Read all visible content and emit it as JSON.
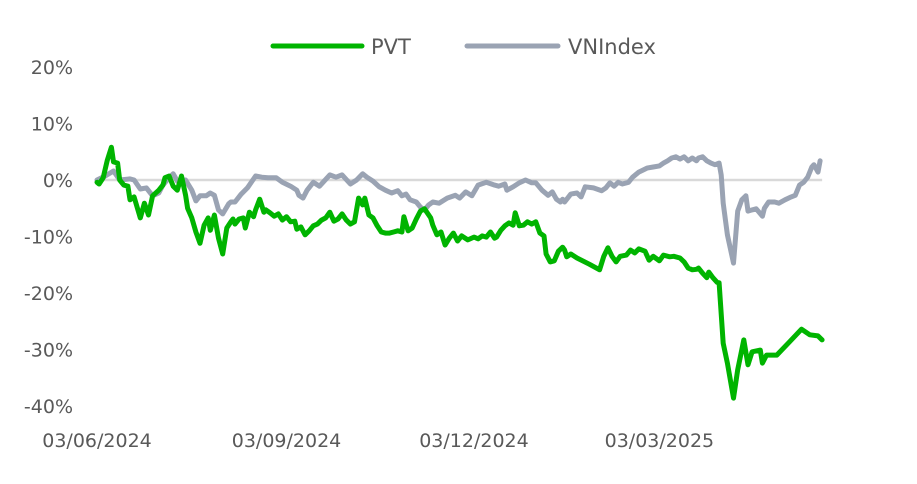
{
  "chart_data": {
    "type": "line",
    "title": "",
    "xlabel": "",
    "ylabel": "",
    "x_unit": "days since 03/06/2024",
    "ylim": [
      -40,
      20
    ],
    "xlim": [
      0,
      352
    ],
    "yticks": [
      {
        "value": 20,
        "label": "20%"
      },
      {
        "value": 10,
        "label": "10%"
      },
      {
        "value": 0,
        "label": "0%"
      },
      {
        "value": -10,
        "label": "-10%"
      },
      {
        "value": -20,
        "label": "-20%"
      },
      {
        "value": -30,
        "label": "-30%"
      },
      {
        "value": -40,
        "label": "-40%"
      }
    ],
    "xticks": [
      {
        "value": 0,
        "label": "03/06/2024"
      },
      {
        "value": 92,
        "label": "03/09/2024"
      },
      {
        "value": 183,
        "label": "03/12/2024"
      },
      {
        "value": 273,
        "label": "03/03/2025"
      }
    ],
    "zero_line": true,
    "legend_position": "top-center",
    "series": [
      {
        "name": "PVT",
        "color": "#00b400",
        "points": [
          [
            0,
            -0.4
          ],
          [
            1,
            -0.7
          ],
          [
            3,
            0.4
          ],
          [
            5,
            3.5
          ],
          [
            7,
            5.8
          ],
          [
            8,
            3.2
          ],
          [
            10,
            3.0
          ],
          [
            11,
            0
          ],
          [
            13,
            -0.9
          ],
          [
            15,
            -1.1
          ],
          [
            16,
            -3.5
          ],
          [
            18,
            -3.0
          ],
          [
            21,
            -6.7
          ],
          [
            23,
            -4.1
          ],
          [
            25,
            -6.2
          ],
          [
            27,
            -2.8
          ],
          [
            30,
            -1.8
          ],
          [
            32,
            -0.9
          ],
          [
            33,
            0.4
          ],
          [
            35,
            0.7
          ],
          [
            37,
            -1.1
          ],
          [
            39,
            -1.8
          ],
          [
            41,
            0.7
          ],
          [
            43,
            -2.7
          ],
          [
            44,
            -5.0
          ],
          [
            46,
            -6.7
          ],
          [
            48,
            -9.2
          ],
          [
            50,
            -11.2
          ],
          [
            52,
            -8.0
          ],
          [
            54,
            -6.7
          ],
          [
            55,
            -8.9
          ],
          [
            57,
            -6.2
          ],
          [
            59,
            -10.3
          ],
          [
            61,
            -13.1
          ],
          [
            63,
            -8.5
          ],
          [
            65,
            -7.4
          ],
          [
            66,
            -6.9
          ],
          [
            67,
            -7.8
          ],
          [
            69,
            -6.9
          ],
          [
            71,
            -6.7
          ],
          [
            72,
            -8.5
          ],
          [
            74,
            -5.7
          ],
          [
            76,
            -6.5
          ],
          [
            77,
            -5.3
          ],
          [
            79,
            -3.4
          ],
          [
            81,
            -5.7
          ],
          [
            82,
            -5.3
          ],
          [
            84,
            -5.8
          ],
          [
            86,
            -6.4
          ],
          [
            88,
            -6.0
          ],
          [
            90,
            -7.1
          ],
          [
            92,
            -6.5
          ],
          [
            94,
            -7.4
          ],
          [
            96,
            -7.3
          ],
          [
            97,
            -8.7
          ],
          [
            99,
            -8.3
          ],
          [
            101,
            -9.7
          ],
          [
            103,
            -9.0
          ],
          [
            105,
            -8.1
          ],
          [
            107,
            -7.8
          ],
          [
            109,
            -7.1
          ],
          [
            111,
            -6.7
          ],
          [
            113,
            -5.7
          ],
          [
            115,
            -7.3
          ],
          [
            117,
            -6.9
          ],
          [
            119,
            -6.0
          ],
          [
            121,
            -7.1
          ],
          [
            123,
            -7.8
          ],
          [
            125,
            -7.4
          ],
          [
            127,
            -3.2
          ],
          [
            129,
            -4.4
          ],
          [
            130,
            -3.2
          ],
          [
            132,
            -6.2
          ],
          [
            134,
            -6.7
          ],
          [
            136,
            -8.1
          ],
          [
            138,
            -9.2
          ],
          [
            140,
            -9.4
          ],
          [
            142,
            -9.4
          ],
          [
            144,
            -9.2
          ],
          [
            146,
            -9.0
          ],
          [
            148,
            -9.2
          ],
          [
            149,
            -6.5
          ],
          [
            151,
            -9.0
          ],
          [
            153,
            -8.5
          ],
          [
            155,
            -6.9
          ],
          [
            157,
            -5.5
          ],
          [
            159,
            -5.1
          ],
          [
            162,
            -6.7
          ],
          [
            163,
            -8.0
          ],
          [
            165,
            -9.7
          ],
          [
            167,
            -9.2
          ],
          [
            169,
            -11.5
          ],
          [
            171,
            -10.3
          ],
          [
            173,
            -9.4
          ],
          [
            175,
            -10.8
          ],
          [
            177,
            -9.9
          ],
          [
            180,
            -10.6
          ],
          [
            183,
            -10.1
          ],
          [
            185,
            -10.4
          ],
          [
            187,
            -9.9
          ],
          [
            189,
            -10.1
          ],
          [
            191,
            -9.2
          ],
          [
            193,
            -10.3
          ],
          [
            194,
            -10.1
          ],
          [
            196,
            -8.9
          ],
          [
            198,
            -8.1
          ],
          [
            200,
            -7.6
          ],
          [
            202,
            -8.0
          ],
          [
            203,
            -5.8
          ],
          [
            205,
            -8.1
          ],
          [
            207,
            -8.0
          ],
          [
            209,
            -7.4
          ],
          [
            211,
            -7.8
          ],
          [
            213,
            -7.4
          ],
          [
            215,
            -9.4
          ],
          [
            217,
            -9.9
          ],
          [
            218,
            -13.1
          ],
          [
            220,
            -14.5
          ],
          [
            222,
            -14.3
          ],
          [
            224,
            -12.6
          ],
          [
            226,
            -11.9
          ],
          [
            227,
            -12.4
          ],
          [
            228,
            -13.6
          ],
          [
            230,
            -13.1
          ],
          [
            233,
            -13.8
          ],
          [
            239,
            -14.9
          ],
          [
            244,
            -15.9
          ],
          [
            246,
            -13.5
          ],
          [
            248,
            -12.0
          ],
          [
            250,
            -13.5
          ],
          [
            252,
            -14.5
          ],
          [
            254,
            -13.5
          ],
          [
            257,
            -13.3
          ],
          [
            259,
            -12.4
          ],
          [
            261,
            -12.9
          ],
          [
            263,
            -12.2
          ],
          [
            266,
            -12.6
          ],
          [
            268,
            -14.2
          ],
          [
            270,
            -13.5
          ],
          [
            273,
            -14.3
          ],
          [
            275,
            -13.3
          ],
          [
            278,
            -13.6
          ],
          [
            280,
            -13.5
          ],
          [
            283,
            -13.8
          ],
          [
            285,
            -14.5
          ],
          [
            287,
            -15.6
          ],
          [
            289,
            -15.9
          ],
          [
            291,
            -15.8
          ],
          [
            292,
            -15.6
          ],
          [
            294,
            -16.5
          ],
          [
            296,
            -17.3
          ],
          [
            297,
            -16.3
          ],
          [
            299,
            -17.3
          ],
          [
            301,
            -18.1
          ],
          [
            302,
            -18.2
          ],
          [
            304,
            -28.9
          ],
          [
            306,
            -32.4
          ],
          [
            309,
            -38.6
          ],
          [
            311,
            -33.6
          ],
          [
            314,
            -28.3
          ],
          [
            316,
            -32.7
          ],
          [
            318,
            -30.4
          ],
          [
            322,
            -30.1
          ],
          [
            323,
            -32.4
          ],
          [
            325,
            -31.0
          ],
          [
            330,
            -31.0
          ],
          [
            336,
            -28.7
          ],
          [
            342,
            -26.4
          ],
          [
            346,
            -27.4
          ],
          [
            350,
            -27.6
          ],
          [
            352,
            -28.3
          ]
        ]
      },
      {
        "name": "VNIndex",
        "color": "#9aa3b3",
        "points": [
          [
            0,
            0
          ],
          [
            4,
            0.7
          ],
          [
            8,
            1.6
          ],
          [
            11,
            0
          ],
          [
            16,
            0.2
          ],
          [
            18,
            0
          ],
          [
            21,
            -1.6
          ],
          [
            24,
            -1.4
          ],
          [
            27,
            -2.8
          ],
          [
            30,
            -2.3
          ],
          [
            32,
            -0.9
          ],
          [
            35,
            0.4
          ],
          [
            37,
            1.1
          ],
          [
            39,
            -0.2
          ],
          [
            43,
            0
          ],
          [
            46,
            -1.8
          ],
          [
            48,
            -3.7
          ],
          [
            50,
            -2.8
          ],
          [
            53,
            -2.8
          ],
          [
            55,
            -2.3
          ],
          [
            57,
            -2.7
          ],
          [
            59,
            -5.3
          ],
          [
            61,
            -6.0
          ],
          [
            64,
            -4.2
          ],
          [
            65,
            -3.9
          ],
          [
            67,
            -3.9
          ],
          [
            70,
            -2.5
          ],
          [
            73,
            -1.4
          ],
          [
            77,
            0.7
          ],
          [
            80,
            0.5
          ],
          [
            83,
            0.4
          ],
          [
            87,
            0.4
          ],
          [
            90,
            -0.4
          ],
          [
            94,
            -1.1
          ],
          [
            97,
            -1.8
          ],
          [
            98,
            -2.7
          ],
          [
            100,
            -3.2
          ],
          [
            102,
            -1.8
          ],
          [
            105,
            -0.4
          ],
          [
            108,
            -1.1
          ],
          [
            113,
            0.9
          ],
          [
            116,
            0.5
          ],
          [
            119,
            0.9
          ],
          [
            123,
            -0.7
          ],
          [
            126,
            0
          ],
          [
            129,
            1.1
          ],
          [
            131,
            0.5
          ],
          [
            134,
            -0.2
          ],
          [
            137,
            -1.2
          ],
          [
            140,
            -1.8
          ],
          [
            143,
            -2.3
          ],
          [
            146,
            -1.9
          ],
          [
            148,
            -2.8
          ],
          [
            150,
            -2.5
          ],
          [
            152,
            -3.5
          ],
          [
            155,
            -3.9
          ],
          [
            157,
            -4.8
          ],
          [
            159,
            -5.3
          ],
          [
            161,
            -4.4
          ],
          [
            163,
            -3.9
          ],
          [
            166,
            -4.1
          ],
          [
            170,
            -3.2
          ],
          [
            174,
            -2.7
          ],
          [
            176,
            -3.2
          ],
          [
            179,
            -2.1
          ],
          [
            182,
            -2.8
          ],
          [
            185,
            -0.9
          ],
          [
            189,
            -0.4
          ],
          [
            193,
            -0.9
          ],
          [
            195,
            -1.1
          ],
          [
            198,
            -0.7
          ],
          [
            199,
            -1.8
          ],
          [
            202,
            -1.2
          ],
          [
            205,
            -0.5
          ],
          [
            208,
            0
          ],
          [
            211,
            -0.5
          ],
          [
            213,
            -0.5
          ],
          [
            216,
            -1.8
          ],
          [
            219,
            -2.7
          ],
          [
            221,
            -2.1
          ],
          [
            223,
            -3.4
          ],
          [
            225,
            -3.9
          ],
          [
            226,
            -3.4
          ],
          [
            227,
            -3.9
          ],
          [
            230,
            -2.5
          ],
          [
            233,
            -2.3
          ],
          [
            235,
            -3.0
          ],
          [
            237,
            -1.2
          ],
          [
            241,
            -1.4
          ],
          [
            245,
            -1.9
          ],
          [
            247,
            -1.4
          ],
          [
            249,
            -0.5
          ],
          [
            251,
            -1.1
          ],
          [
            253,
            -0.4
          ],
          [
            255,
            -0.7
          ],
          [
            258,
            -0.4
          ],
          [
            260,
            0.5
          ],
          [
            263,
            1.4
          ],
          [
            267,
            2.1
          ],
          [
            270,
            2.3
          ],
          [
            273,
            2.5
          ],
          [
            275,
            3.0
          ],
          [
            277,
            3.4
          ],
          [
            279,
            3.9
          ],
          [
            281,
            4.1
          ],
          [
            283,
            3.7
          ],
          [
            285,
            4.1
          ],
          [
            287,
            3.4
          ],
          [
            289,
            3.9
          ],
          [
            291,
            3.4
          ],
          [
            292,
            3.9
          ],
          [
            294,
            4.1
          ],
          [
            296,
            3.4
          ],
          [
            298,
            3.0
          ],
          [
            300,
            2.7
          ],
          [
            302,
            3.0
          ],
          [
            303,
            0.9
          ],
          [
            304,
            -4.1
          ],
          [
            306,
            -9.7
          ],
          [
            309,
            -14.7
          ],
          [
            311,
            -5.5
          ],
          [
            313,
            -3.5
          ],
          [
            315,
            -2.8
          ],
          [
            316,
            -5.5
          ],
          [
            318,
            -5.3
          ],
          [
            320,
            -5.1
          ],
          [
            323,
            -6.4
          ],
          [
            324,
            -5.0
          ],
          [
            326,
            -3.9
          ],
          [
            329,
            -3.9
          ],
          [
            331,
            -4.1
          ],
          [
            334,
            -3.5
          ],
          [
            337,
            -3.0
          ],
          [
            339,
            -2.7
          ],
          [
            341,
            -0.9
          ],
          [
            343,
            -0.4
          ],
          [
            345,
            0.5
          ],
          [
            347,
            2.3
          ],
          [
            348,
            2.7
          ],
          [
            350,
            1.4
          ],
          [
            351,
            3.4
          ]
        ]
      }
    ]
  }
}
